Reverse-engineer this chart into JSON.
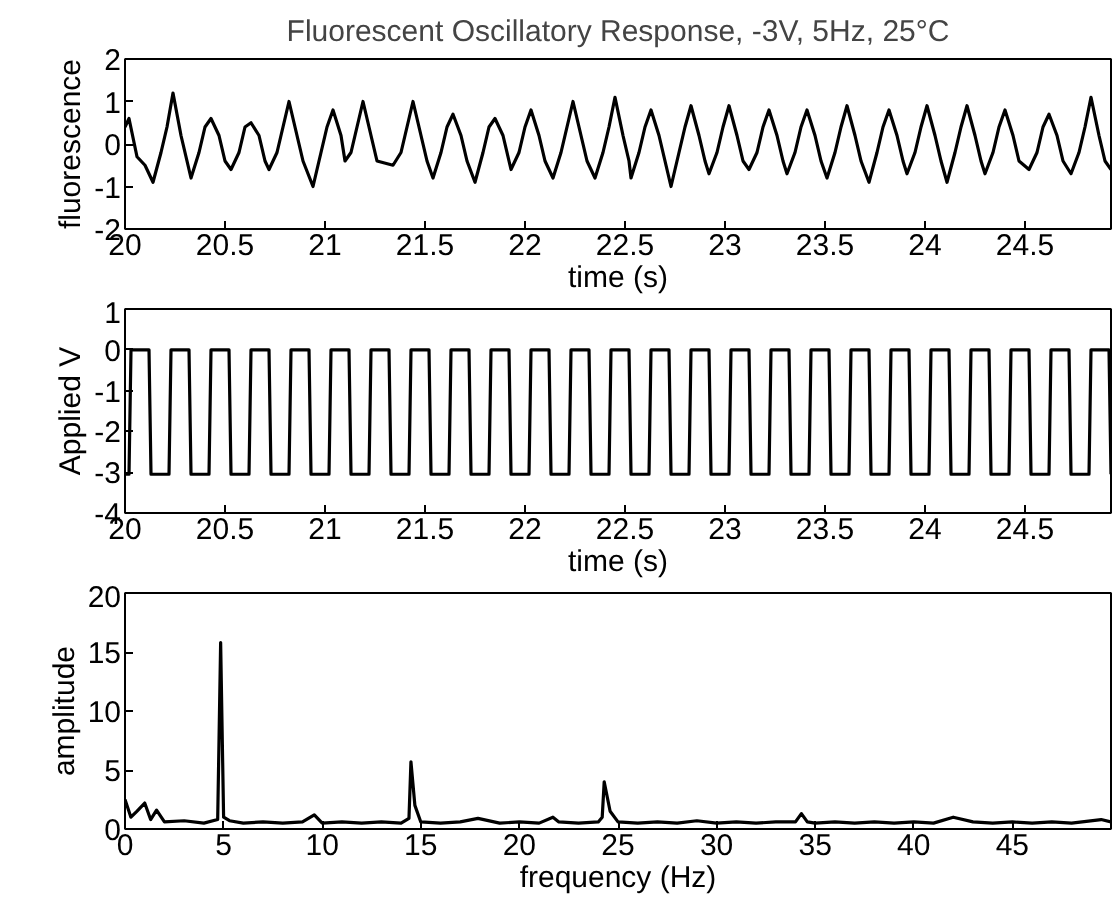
{
  "chart_data": [
    {
      "type": "line",
      "title": "Fluorescent Oscillatory Response, -3V, 5Hz, 25°C",
      "xlabel": "time (s)",
      "ylabel": "fluorescence",
      "color": "#000000",
      "x": [
        20.0,
        20.02,
        20.06,
        20.1,
        20.14,
        20.18,
        20.21,
        20.24,
        20.28,
        20.31,
        20.33,
        20.37,
        20.4,
        20.43,
        20.47,
        20.5,
        20.53,
        20.57,
        20.6,
        20.63,
        20.67,
        20.7,
        20.72,
        20.76,
        20.79,
        20.82,
        20.86,
        20.89,
        20.94,
        20.98,
        21.01,
        21.04,
        21.08,
        21.1,
        21.13,
        21.16,
        21.19,
        21.23,
        21.26,
        21.34,
        21.38,
        21.41,
        21.44,
        21.48,
        21.51,
        21.54,
        21.58,
        21.61,
        21.64,
        21.68,
        21.71,
        21.75,
        21.79,
        21.82,
        21.85,
        21.89,
        21.92,
        21.93,
        21.97,
        22.0,
        22.03,
        22.07,
        22.1,
        22.14,
        22.18,
        22.21,
        22.24,
        22.28,
        22.31,
        22.35,
        22.39,
        22.42,
        22.45,
        22.49,
        22.52,
        22.53,
        22.57,
        22.6,
        22.63,
        22.67,
        22.7,
        22.73,
        22.77,
        22.8,
        22.83,
        22.87,
        22.9,
        22.92,
        22.96,
        22.99,
        23.02,
        23.06,
        23.09,
        23.12,
        23.16,
        23.19,
        23.22,
        23.26,
        23.29,
        23.31,
        23.35,
        23.38,
        23.41,
        23.45,
        23.48,
        23.51,
        23.55,
        23.58,
        23.61,
        23.65,
        23.68,
        23.72,
        23.76,
        23.79,
        23.82,
        23.86,
        23.89,
        23.91,
        23.95,
        23.98,
        24.01,
        24.05,
        24.08,
        24.11,
        24.15,
        24.18,
        24.21,
        24.25,
        24.28,
        24.3,
        24.34,
        24.37,
        24.4,
        24.44,
        24.47,
        24.52,
        24.56,
        24.59,
        24.62,
        24.66,
        24.69,
        24.73,
        24.77,
        24.8,
        24.83,
        24.87,
        24.9,
        24.93
      ],
      "values": [
        0.4,
        0.6,
        -0.3,
        -0.5,
        -0.9,
        -0.2,
        0.4,
        1.2,
        0.2,
        -0.4,
        -0.8,
        -0.2,
        0.4,
        0.6,
        0.2,
        -0.4,
        -0.6,
        -0.2,
        0.4,
        0.5,
        0.2,
        -0.4,
        -0.6,
        -0.2,
        0.4,
        1.0,
        0.2,
        -0.4,
        -1.0,
        -0.2,
        0.4,
        0.8,
        0.2,
        -0.4,
        -0.2,
        0.4,
        1.0,
        0.2,
        -0.4,
        -0.5,
        -0.2,
        0.4,
        1.0,
        0.2,
        -0.4,
        -0.8,
        -0.2,
        0.4,
        0.7,
        0.2,
        -0.4,
        -0.9,
        -0.2,
        0.4,
        0.6,
        0.2,
        -0.4,
        -0.6,
        -0.2,
        0.4,
        0.8,
        0.2,
        -0.4,
        -0.8,
        -0.2,
        0.4,
        1.0,
        0.2,
        -0.4,
        -0.8,
        -0.2,
        0.4,
        1.1,
        0.2,
        -0.4,
        -0.8,
        -0.2,
        0.4,
        0.8,
        0.2,
        -0.4,
        -1.0,
        -0.2,
        0.4,
        0.9,
        0.2,
        -0.4,
        -0.7,
        -0.2,
        0.4,
        0.9,
        0.2,
        -0.4,
        -0.6,
        -0.2,
        0.4,
        0.8,
        0.2,
        -0.4,
        -0.7,
        -0.2,
        0.4,
        0.8,
        0.2,
        -0.4,
        -0.8,
        -0.2,
        0.4,
        0.9,
        0.2,
        -0.4,
        -0.9,
        -0.2,
        0.4,
        0.8,
        0.2,
        -0.4,
        -0.7,
        -0.2,
        0.4,
        0.9,
        0.2,
        -0.4,
        -0.9,
        -0.2,
        0.4,
        0.9,
        0.2,
        -0.4,
        -0.7,
        -0.2,
        0.4,
        0.8,
        0.2,
        -0.4,
        -0.6,
        -0.2,
        0.4,
        0.7,
        0.2,
        -0.4,
        -0.7,
        -0.2,
        0.4,
        1.1,
        0.2,
        -0.4,
        -0.6
      ],
      "xlim": [
        20,
        24.93
      ],
      "ylim": [
        -2,
        2
      ],
      "xticks": [
        20,
        20.5,
        21,
        21.5,
        22,
        22.5,
        23,
        23.5,
        24,
        24.5
      ],
      "yticks": [
        -2,
        -1,
        0,
        1,
        2
      ]
    },
    {
      "type": "line",
      "xlabel": "time (s)",
      "ylabel": "Applied V",
      "color": "#000000",
      "x": [
        20.0,
        20.02,
        20.03,
        20.12,
        20.13,
        20.22,
        20.23,
        20.32,
        20.33,
        20.42,
        20.43,
        20.52,
        20.53,
        20.62,
        20.63,
        20.72,
        20.73,
        20.82,
        20.83,
        20.92,
        20.93,
        21.02,
        21.03,
        21.12,
        21.13,
        21.22,
        21.23,
        21.32,
        21.33,
        21.42,
        21.43,
        21.52,
        21.53,
        21.62,
        21.63,
        21.72,
        21.73,
        21.82,
        21.83,
        21.92,
        21.93,
        22.02,
        22.03,
        22.12,
        22.13,
        22.22,
        22.23,
        22.32,
        22.33,
        22.42,
        22.43,
        22.52,
        22.53,
        22.62,
        22.63,
        22.72,
        22.73,
        22.82,
        22.83,
        22.92,
        22.93,
        23.02,
        23.03,
        23.12,
        23.13,
        23.22,
        23.23,
        23.32,
        23.33,
        23.42,
        23.43,
        23.52,
        23.53,
        23.62,
        23.63,
        23.72,
        23.73,
        23.82,
        23.83,
        23.92,
        23.93,
        24.02,
        24.03,
        24.12,
        24.13,
        24.22,
        24.23,
        24.32,
        24.33,
        24.42,
        24.43,
        24.52,
        24.53,
        24.62,
        24.63,
        24.72,
        24.73,
        24.82,
        24.83,
        24.92,
        24.93
      ],
      "values": [
        -3.05,
        -3.05,
        0,
        0,
        -3.05,
        -3.05,
        0,
        0,
        -3.05,
        -3.05,
        0,
        0,
        -3.05,
        -3.05,
        0,
        0,
        -3.05,
        -3.05,
        0,
        0,
        -3.05,
        -3.05,
        0,
        0,
        -3.05,
        -3.05,
        0,
        0,
        -3.05,
        -3.05,
        0,
        0,
        -3.05,
        -3.05,
        0,
        0,
        -3.05,
        -3.05,
        0,
        0,
        -3.05,
        -3.05,
        0,
        0,
        -3.05,
        -3.05,
        0,
        0,
        -3.05,
        -3.05,
        0,
        0,
        -3.05,
        -3.05,
        0,
        0,
        -3.05,
        -3.05,
        0,
        0,
        -3.05,
        -3.05,
        0,
        0,
        -3.05,
        -3.05,
        0,
        0,
        -3.05,
        -3.05,
        0,
        0,
        -3.05,
        -3.05,
        0,
        0,
        -3.05,
        -3.05,
        0,
        0,
        -3.05,
        -3.05,
        0,
        0,
        -3.05,
        -3.05,
        0,
        0,
        -3.05,
        -3.05,
        0,
        0,
        -3.05,
        -3.05,
        0,
        0,
        -3.05,
        -3.05,
        0,
        0,
        -3.05
      ],
      "xlim": [
        20,
        24.93
      ],
      "ylim": [
        -4,
        1
      ],
      "xticks": [
        20,
        20.5,
        21,
        21.5,
        22,
        22.5,
        23,
        23.5,
        24,
        24.5
      ],
      "yticks": [
        -4,
        -3,
        -2,
        -1,
        0,
        1
      ]
    },
    {
      "type": "line",
      "xlabel": "frequency (Hz)",
      "ylabel": "amplitude",
      "color": "#000000",
      "x": [
        0,
        0.3,
        0.6,
        1.0,
        1.3,
        1.6,
        2,
        3,
        4,
        4.7,
        4.85,
        5.0,
        5.3,
        6,
        7,
        8,
        9,
        9.6,
        10,
        11,
        12,
        13,
        14,
        14.4,
        14.5,
        14.7,
        15,
        16,
        17,
        17.9,
        19,
        20,
        21,
        21.7,
        22,
        23,
        24,
        24.2,
        24.3,
        24.6,
        25,
        26,
        27,
        28,
        29,
        30,
        31,
        32,
        33,
        34,
        34.3,
        34.6,
        35,
        36,
        37,
        38,
        39,
        40,
        41,
        42,
        43,
        44,
        45,
        46,
        47,
        48,
        49.5,
        50
      ],
      "values": [
        2.5,
        1.0,
        1.5,
        2.2,
        0.8,
        1.6,
        0.6,
        0.7,
        0.5,
        0.8,
        15.8,
        1.0,
        0.7,
        0.5,
        0.6,
        0.5,
        0.6,
        1.2,
        0.5,
        0.6,
        0.5,
        0.6,
        0.5,
        0.9,
        5.7,
        2.0,
        0.6,
        0.5,
        0.6,
        0.9,
        0.5,
        0.6,
        0.5,
        1.0,
        0.6,
        0.5,
        0.6,
        1.0,
        4.0,
        1.5,
        0.6,
        0.5,
        0.6,
        0.5,
        0.7,
        0.5,
        0.6,
        0.5,
        0.6,
        0.6,
        1.3,
        0.6,
        0.5,
        0.6,
        0.5,
        0.6,
        0.5,
        0.6,
        0.5,
        1.0,
        0.6,
        0.5,
        0.6,
        0.5,
        0.6,
        0.5,
        0.8,
        0.6
      ],
      "xlim": [
        0,
        50
      ],
      "ylim": [
        0,
        20
      ],
      "xticks": [
        0,
        5,
        10,
        15,
        20,
        25,
        30,
        35,
        40,
        45
      ],
      "yticks": [
        0,
        5,
        10,
        15,
        20
      ]
    }
  ]
}
